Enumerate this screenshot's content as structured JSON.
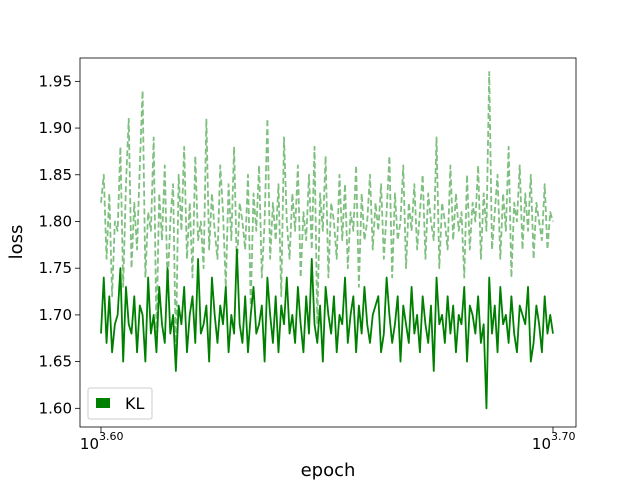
{
  "chart_data": {
    "type": "line",
    "title": "",
    "xlabel": "epoch",
    "ylabel": "loss",
    "xscale": "log",
    "xlim": [
      3981.07,
      5011.87
    ],
    "ylim": [
      1.58,
      1.975
    ],
    "x_ticks": [
      {
        "value": 3981.07,
        "base": "10",
        "exp": "3.60"
      },
      {
        "value": 5011.87,
        "base": "10",
        "exp": "3.70"
      }
    ],
    "y_ticks": [
      1.6,
      1.65,
      1.7,
      1.75,
      1.8,
      1.85,
      1.9,
      1.95
    ],
    "y_tick_labels": [
      "1.60",
      "1.65",
      "1.70",
      "1.75",
      "1.80",
      "1.85",
      "1.90",
      "1.95"
    ],
    "grid": false,
    "legend": {
      "position": "lower-left",
      "entries": [
        {
          "label": "KL",
          "color": "#008000"
        }
      ]
    },
    "series": [
      {
        "name": "KL",
        "color": "#008000",
        "style": "solid",
        "x_start": 3981.07,
        "x_end": 5011.87,
        "values": [
          1.68,
          1.74,
          1.67,
          1.72,
          1.66,
          1.69,
          1.7,
          1.75,
          1.65,
          1.73,
          1.69,
          1.68,
          1.72,
          1.66,
          1.71,
          1.7,
          1.65,
          1.74,
          1.68,
          1.7,
          1.66,
          1.73,
          1.69,
          1.67,
          1.75,
          1.68,
          1.7,
          1.64,
          1.71,
          1.69,
          1.73,
          1.66,
          1.7,
          1.72,
          1.67,
          1.76,
          1.68,
          1.69,
          1.71,
          1.65,
          1.74,
          1.7,
          1.67,
          1.71,
          1.69,
          1.73,
          1.66,
          1.7,
          1.68,
          1.77,
          1.69,
          1.67,
          1.72,
          1.66,
          1.7,
          1.73,
          1.68,
          1.69,
          1.71,
          1.65,
          1.74,
          1.7,
          1.67,
          1.72,
          1.66,
          1.71,
          1.69,
          1.74,
          1.68,
          1.7,
          1.67,
          1.73,
          1.69,
          1.66,
          1.72,
          1.68,
          1.76,
          1.69,
          1.67,
          1.71,
          1.65,
          1.73,
          1.7,
          1.68,
          1.72,
          1.66,
          1.7,
          1.69,
          1.74,
          1.67,
          1.7,
          1.72,
          1.66,
          1.71,
          1.68,
          1.73,
          1.69,
          1.67,
          1.7,
          1.71,
          1.72,
          1.66,
          1.68,
          1.74,
          1.7,
          1.67,
          1.69,
          1.72,
          1.65,
          1.71,
          1.69,
          1.67,
          1.73,
          1.68,
          1.7,
          1.66,
          1.72,
          1.69,
          1.67,
          1.71,
          1.64,
          1.74,
          1.69,
          1.7,
          1.67,
          1.72,
          1.68,
          1.71,
          1.66,
          1.7,
          1.69,
          1.73,
          1.65,
          1.71,
          1.7,
          1.68,
          1.72,
          1.67,
          1.69,
          1.6,
          1.74,
          1.68,
          1.71,
          1.66,
          1.73,
          1.69,
          1.7,
          1.67,
          1.72,
          1.68,
          1.66,
          1.71,
          1.7,
          1.69,
          1.73,
          1.65,
          1.67,
          1.71,
          1.69,
          1.66,
          1.72,
          1.68,
          1.7,
          1.68
        ]
      },
      {
        "name": "",
        "color": "#7fbf7f",
        "style": "dashed",
        "x_start": 3981.07,
        "x_end": 5011.87,
        "values": [
          1.82,
          1.85,
          1.76,
          1.83,
          1.72,
          1.8,
          1.79,
          1.88,
          1.73,
          1.84,
          1.91,
          1.75,
          1.82,
          1.77,
          1.86,
          1.94,
          1.74,
          1.81,
          1.79,
          1.89,
          1.68,
          1.83,
          1.78,
          1.86,
          1.73,
          1.8,
          1.84,
          1.66,
          1.85,
          1.79,
          1.88,
          1.76,
          1.82,
          1.74,
          1.87,
          1.78,
          1.8,
          1.75,
          1.91,
          1.77,
          1.83,
          1.79,
          1.76,
          1.86,
          1.81,
          1.73,
          1.84,
          1.78,
          1.88,
          1.75,
          1.82,
          1.8,
          1.77,
          1.85,
          1.71,
          1.83,
          1.79,
          1.86,
          1.74,
          1.8,
          1.91,
          1.76,
          1.82,
          1.78,
          1.84,
          1.72,
          1.89,
          1.8,
          1.76,
          1.83,
          1.79,
          1.86,
          1.74,
          1.81,
          1.78,
          1.85,
          1.77,
          1.88,
          1.69,
          1.83,
          1.79,
          1.87,
          1.74,
          1.82,
          1.8,
          1.76,
          1.85,
          1.78,
          1.84,
          1.75,
          1.81,
          1.79,
          1.86,
          1.73,
          1.83,
          1.78,
          1.8,
          1.85,
          1.77,
          1.82,
          1.79,
          1.84,
          1.76,
          1.81,
          1.87,
          1.74,
          1.83,
          1.78,
          1.8,
          1.86,
          1.75,
          1.82,
          1.79,
          1.84,
          1.77,
          1.81,
          1.85,
          1.76,
          1.83,
          1.8,
          1.78,
          1.89,
          1.75,
          1.82,
          1.8,
          1.77,
          1.86,
          1.78,
          1.83,
          1.79,
          1.81,
          1.74,
          1.85,
          1.77,
          1.82,
          1.8,
          1.86,
          1.76,
          1.83,
          1.79,
          1.96,
          1.77,
          1.81,
          1.85,
          1.76,
          1.83,
          1.79,
          1.88,
          1.74,
          1.82,
          1.8,
          1.86,
          1.77,
          1.83,
          1.79,
          1.85,
          1.76,
          1.82,
          1.8,
          1.78,
          1.84,
          1.77,
          1.81,
          1.8
        ]
      }
    ]
  }
}
